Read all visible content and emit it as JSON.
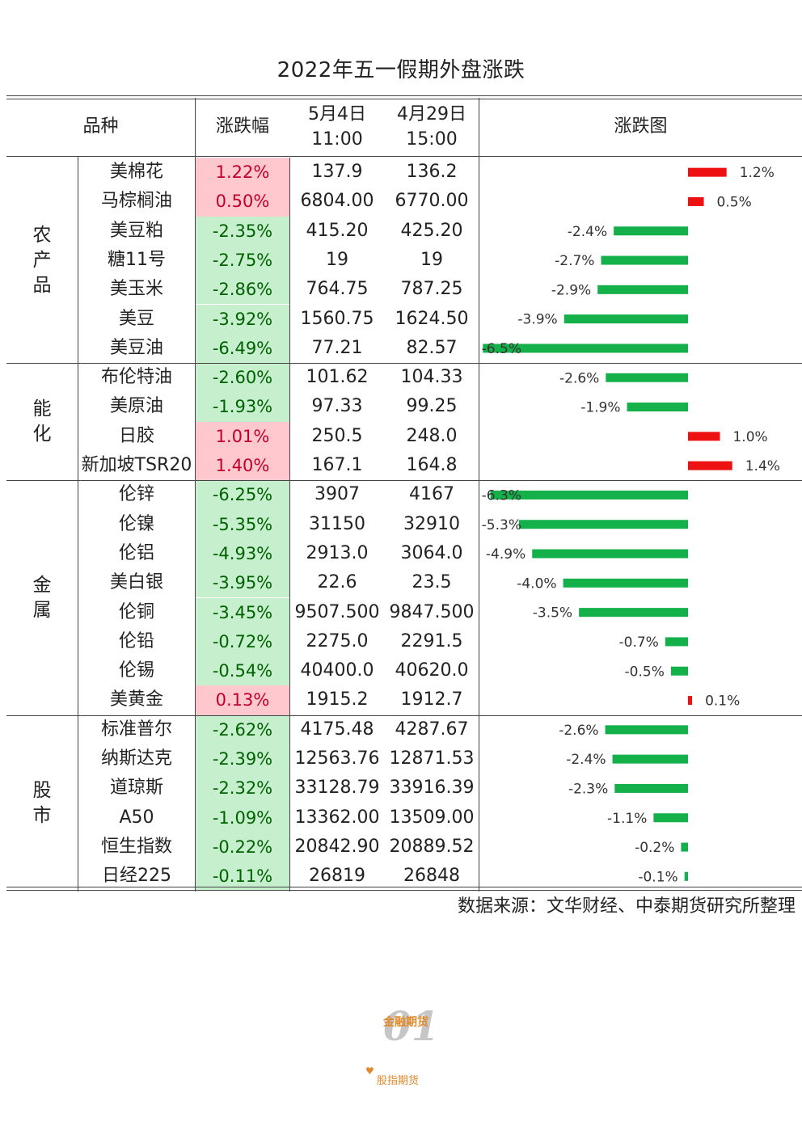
{
  "title": "2022年五一假期外盘涨跌",
  "headers": {
    "variety": "品种",
    "change": "涨跌幅",
    "date1": "5月4日",
    "time1": "11:00",
    "date2": "4月29日",
    "time2": "15:00",
    "chart": "涨跌图"
  },
  "categories": [
    {
      "label": [
        "农",
        "产",
        "品"
      ],
      "start": 0,
      "count": 7
    },
    {
      "label": [
        "能",
        "化"
      ],
      "start": 7,
      "count": 4
    },
    {
      "label": [
        "金",
        "属"
      ],
      "start": 11,
      "count": 8
    },
    {
      "label": [
        "股",
        "市"
      ],
      "start": 19,
      "count": 6
    }
  ],
  "rows": [
    {
      "name": "美棉花",
      "pct": "1.22%",
      "v1": "137.9",
      "v2": "136.2"
    },
    {
      "name": "马棕榈油",
      "pct": "0.50%",
      "v1": "6804.00",
      "v2": "6770.00"
    },
    {
      "name": "美豆粕",
      "pct": "-2.35%",
      "v1": "415.20",
      "v2": "425.20"
    },
    {
      "name": "糖11号",
      "pct": "-2.75%",
      "v1": "19",
      "v2": "19"
    },
    {
      "name": "美玉米",
      "pct": "-2.86%",
      "v1": "764.75",
      "v2": "787.25"
    },
    {
      "name": "美豆",
      "pct": "-3.92%",
      "v1": "1560.75",
      "v2": "1624.50"
    },
    {
      "name": "美豆油",
      "pct": "-6.49%",
      "v1": "77.21",
      "v2": "82.57"
    },
    {
      "name": "布伦特油",
      "pct": "-2.60%",
      "v1": "101.62",
      "v2": "104.33"
    },
    {
      "name": "美原油",
      "pct": "-1.93%",
      "v1": "97.33",
      "v2": "99.25"
    },
    {
      "name": "日胶",
      "pct": "1.01%",
      "v1": "250.5",
      "v2": "248.0"
    },
    {
      "name": "新加坡TSR20",
      "pct": "1.40%",
      "v1": "167.1",
      "v2": "164.8"
    },
    {
      "name": "伦锌",
      "pct": "-6.25%",
      "v1": "3907",
      "v2": "4167"
    },
    {
      "name": "伦镍",
      "pct": "-5.35%",
      "v1": "31150",
      "v2": "32910"
    },
    {
      "name": "伦铝",
      "pct": "-4.93%",
      "v1": "2913.0",
      "v2": "3064.0"
    },
    {
      "name": "美白银",
      "pct": "-3.95%",
      "v1": "22.6",
      "v2": "23.5"
    },
    {
      "name": "伦铜",
      "pct": "-3.45%",
      "v1": "9507.500",
      "v2": "9847.500"
    },
    {
      "name": "伦铅",
      "pct": "-0.72%",
      "v1": "2275.0",
      "v2": "2291.5"
    },
    {
      "name": "伦锡",
      "pct": "-0.54%",
      "v1": "40400.0",
      "v2": "40620.0"
    },
    {
      "name": "美黄金",
      "pct": "0.13%",
      "v1": "1915.2",
      "v2": "1912.7"
    },
    {
      "name": "标准普尔",
      "pct": "-2.62%",
      "v1": "4175.48",
      "v2": "4287.67"
    },
    {
      "name": "纳斯达克",
      "pct": "-2.39%",
      "v1": "12563.76",
      "v2": "12871.53"
    },
    {
      "name": "道琼斯",
      "pct": "-2.32%",
      "v1": "33128.79",
      "v2": "33916.39"
    },
    {
      "name": "A50",
      "pct": "-1.09%",
      "v1": "13362.00",
      "v2": "13509.00"
    },
    {
      "name": "恒生指数",
      "pct": "-0.22%",
      "v1": "20842.90",
      "v2": "20889.52"
    },
    {
      "name": "日经225",
      "pct": "-0.11%",
      "v1": "26819",
      "v2": "26848"
    }
  ],
  "chart_data": {
    "type": "bar",
    "orientation": "horizontal",
    "title": "涨跌图",
    "categories": [
      "美棉花",
      "马棕榈油",
      "美豆粕",
      "糖11号",
      "美玉米",
      "美豆",
      "美豆油",
      "布伦特油",
      "美原油",
      "日胶",
      "新加坡TSR20",
      "伦锌",
      "伦镍",
      "伦铝",
      "美白银",
      "伦铜",
      "伦铅",
      "伦锡",
      "美黄金",
      "标准普尔",
      "纳斯达克",
      "道琼斯",
      "A50",
      "恒生指数",
      "日经225"
    ],
    "values": [
      1.22,
      0.5,
      -2.35,
      -2.75,
      -2.86,
      -3.92,
      -6.49,
      -2.6,
      -1.93,
      1.01,
      1.4,
      -6.25,
      -5.35,
      -4.93,
      -3.95,
      -3.45,
      -0.72,
      -0.54,
      0.13,
      -2.62,
      -2.39,
      -2.32,
      -1.09,
      -0.22,
      -0.11
    ],
    "labels": [
      "1.2%",
      "0.5%",
      "-2.4%",
      "-2.7%",
      "-2.9%",
      "-3.9%",
      "-6.5%",
      "-2.6%",
      "-1.9%",
      "1.0%",
      "1.4%",
      "-6.3%",
      "-5.3%",
      "-4.9%",
      "-4.0%",
      "-3.5%",
      "-0.7%",
      "-0.5%",
      "0.1%",
      "-2.6%",
      "-2.4%",
      "-2.3%",
      "-1.1%",
      "-0.2%",
      "-0.1%"
    ],
    "colors": {
      "positive": "#ee1111",
      "negative": "#14b04a"
    },
    "xlim": [
      -6.6,
      2.0
    ],
    "grid": false,
    "legend": "none"
  },
  "cell_colors": {
    "positive_bg": "#ffc7ce",
    "negative_bg": "#c6efce",
    "positive_text": "#c0002a",
    "negative_text": "#006100"
  },
  "source": "数据来源：文华财经、中泰期货研究所整理",
  "watermark": {
    "number": "01",
    "text1": "金融期货",
    "text2": "股指期货"
  }
}
